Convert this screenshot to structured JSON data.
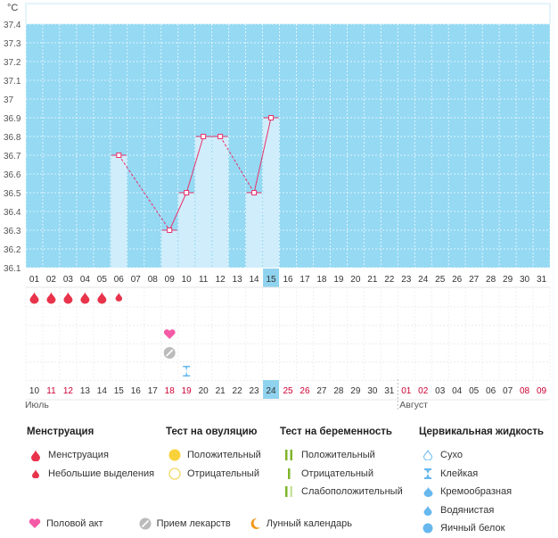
{
  "chart_data": {
    "type": "line",
    "unit": "°C",
    "ylim": [
      36.1,
      37.4
    ],
    "yticks": [
      "37.4",
      "37.3",
      "37.2",
      "37.1",
      "37",
      "36.9",
      "36.8",
      "36.7",
      "36.6",
      "36.5",
      "36.4",
      "36.3",
      "36.2",
      "36.1"
    ],
    "cycle_days": [
      "01",
      "02",
      "03",
      "04",
      "05",
      "06",
      "07",
      "08",
      "09",
      "10",
      "11",
      "12",
      "13",
      "14",
      "15",
      "16",
      "17",
      "18",
      "19",
      "20",
      "21",
      "22",
      "23",
      "24",
      "25",
      "26",
      "27",
      "28",
      "29",
      "30",
      "31"
    ],
    "current_day": "15",
    "series": [
      {
        "x": [
          "06",
          "09",
          "10",
          "11",
          "12",
          "14",
          "15"
        ],
        "values": [
          36.7,
          36.3,
          36.5,
          36.8,
          36.8,
          36.5,
          36.9
        ]
      }
    ],
    "segments": [
      {
        "from": 0,
        "to": 1,
        "style": "dashed"
      },
      {
        "from": 1,
        "to": 2,
        "style": "solid"
      },
      {
        "from": 2,
        "to": 3,
        "style": "solid"
      },
      {
        "from": 3,
        "to": 4,
        "style": "solid"
      },
      {
        "from": 4,
        "to": 5,
        "style": "dashed"
      },
      {
        "from": 5,
        "to": 6,
        "style": "solid"
      }
    ],
    "grid": true
  },
  "events": {
    "menstruation": {
      "days": [
        "01",
        "02",
        "03",
        "04",
        "05"
      ],
      "icon": "drop-icon"
    },
    "light_spotting": {
      "days": [
        "06"
      ],
      "icon": "small-drop-icon"
    },
    "intercourse": {
      "days": [
        "09"
      ],
      "icon": "heart-icon"
    },
    "medication": {
      "days": [
        "09"
      ],
      "icon": "pill-icon"
    },
    "fluid_sticky": {
      "days": [
        "10"
      ],
      "icon": "hourglass-icon"
    }
  },
  "calendar": {
    "dates": [
      "10",
      "11",
      "12",
      "13",
      "14",
      "15",
      "16",
      "17",
      "18",
      "19",
      "20",
      "21",
      "22",
      "23",
      "24",
      "25",
      "26",
      "27",
      "28",
      "29",
      "30",
      "31",
      "01",
      "02",
      "03",
      "04",
      "05",
      "06",
      "07",
      "08",
      "09"
    ],
    "red": [
      "11",
      "12",
      "18",
      "19",
      "25",
      "26",
      "01*",
      "02*",
      "08*",
      "09*"
    ],
    "today_index": 14,
    "month1": "Июль",
    "month2": "Август"
  },
  "legend": {
    "menstruation": {
      "title": "Менструация",
      "items": [
        "Менструация",
        "Небольшие выделения"
      ]
    },
    "ovulation": {
      "title": "Тест на овуляцию",
      "items": [
        "Положительный",
        "Отрицательный"
      ]
    },
    "pregnancy": {
      "title": "Тест на беременность",
      "items": [
        "Положительный",
        "Отрицательный",
        "Слабоположительный"
      ]
    },
    "cervical": {
      "title": "Цервикальная жидкость",
      "items": [
        "Сухо",
        "Клейкая",
        "Кремообразная",
        "Водянистая",
        "Яичный белок"
      ]
    },
    "bottom": [
      "Половой акт",
      "Прием лекарств",
      "Лунный календарь"
    ]
  },
  "colors": {
    "chart_bg": "#95d9f3",
    "bar_fill": "#d0edfb",
    "line": "#e8316a",
    "today": "#8fd3ee",
    "weekend": "#cc0033",
    "drop": "#e8334a",
    "heart": "#f45aa5",
    "ovulation_pos": "#f9d23a",
    "ovulation_neg": "#f4d866",
    "preg_pos": "#7fb52a",
    "preg_weak": "#c8e29e",
    "fluid": "#66b8ee",
    "moon": "#f49a1c"
  }
}
